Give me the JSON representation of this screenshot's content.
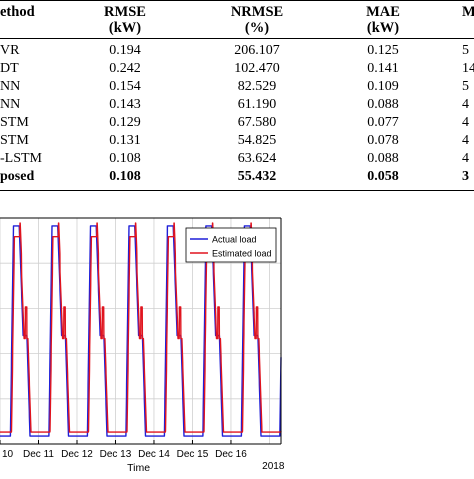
{
  "table": {
    "headers": [
      {
        "line1": "ethod",
        "line2": ""
      },
      {
        "line1": "RMSE",
        "line2": "(kW)"
      },
      {
        "line1": "NRMSE",
        "line2": "(%)"
      },
      {
        "line1": "MAE",
        "line2": "(kW)"
      },
      {
        "line1": "M",
        "line2": ""
      }
    ],
    "rows": [
      {
        "method": "VR",
        "rmse": "0.194",
        "nrmse": "206.107",
        "mae": "0.125",
        "m": "5",
        "bold": false
      },
      {
        "method": "DT",
        "rmse": "0.242",
        "nrmse": "102.470",
        "mae": "0.141",
        "m": "14",
        "bold": false
      },
      {
        "method": "NN",
        "rmse": "0.154",
        "nrmse": "82.529",
        "mae": "0.109",
        "m": "5",
        "bold": false
      },
      {
        "method": "NN",
        "rmse": "0.143",
        "nrmse": "61.190",
        "mae": "0.088",
        "m": "4",
        "bold": false
      },
      {
        "method": "STM",
        "rmse": "0.129",
        "nrmse": "67.580",
        "mae": "0.077",
        "m": "4",
        "bold": false
      },
      {
        "method": "STM",
        "rmse": "0.131",
        "nrmse": "54.825",
        "mae": "0.078",
        "m": "4",
        "bold": false
      },
      {
        "method": "-LSTM",
        "rmse": "0.108",
        "nrmse": "63.624",
        "mae": "0.088",
        "m": "4",
        "bold": false
      },
      {
        "method": "posed",
        "rmse": "0.108",
        "nrmse": "55.432",
        "mae": "0.058",
        "m": "3",
        "bold": true
      }
    ]
  },
  "chart_data": {
    "type": "line",
    "title": "",
    "xlabel": "Time",
    "ylabel": "",
    "x_ticks": [
      "10",
      "Dec 11",
      "Dec 12",
      "Dec 13",
      "Dec 14",
      "Dec 15",
      "Dec 16"
    ],
    "x_year_label": "2018",
    "grid": true,
    "legend_position": "top-right",
    "x_range_days": [
      10,
      17.3
    ],
    "y_range": [
      0,
      1
    ],
    "series": [
      {
        "name": "Actual load",
        "color": "#1f1fd8"
      },
      {
        "name": "Estimated load",
        "color": "#e0141e"
      }
    ]
  }
}
